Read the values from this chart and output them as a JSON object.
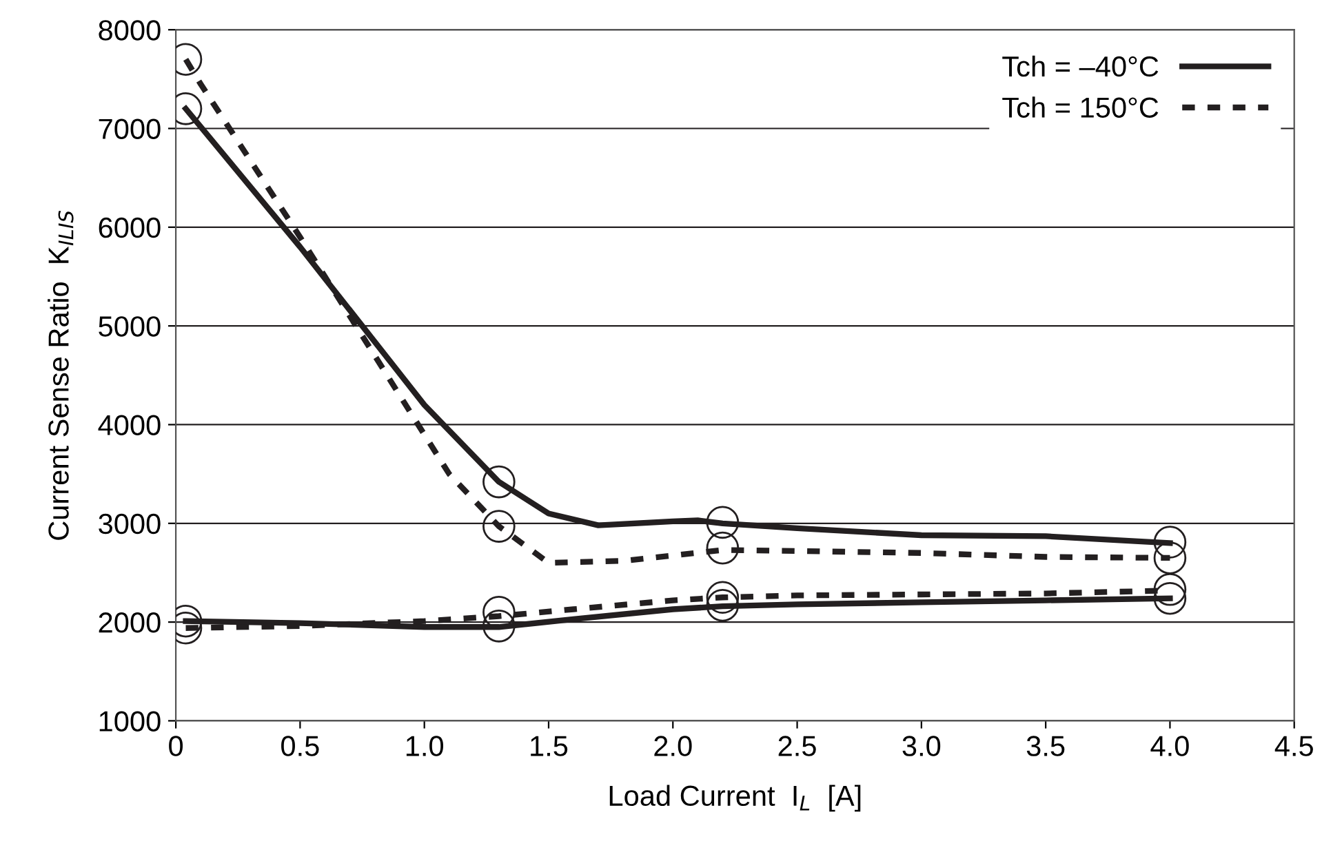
{
  "chart_data": {
    "type": "line",
    "xlabel": "Load Current  I$_{L}$  [A]",
    "ylabel": "Current Sense Ratio  K$_{ILIS}$",
    "xlim": [
      0,
      4.5
    ],
    "ylim": [
      1000,
      8000
    ],
    "xticks": [
      0,
      {
        "value": 0.5,
        "label": "0.5"
      },
      {
        "value": 1,
        "label": "1.0"
      },
      {
        "value": 1.5,
        "label": "1.5"
      },
      {
        "value": 2,
        "label": "2.0"
      },
      {
        "value": 2.5,
        "label": "2.5"
      },
      {
        "value": 3,
        "label": "3.0"
      },
      {
        "value": 3.5,
        "label": "3.5"
      },
      {
        "value": 4,
        "label": "4.0"
      },
      {
        "value": 4.5,
        "label": "4.5"
      }
    ],
    "yticks": [
      1000,
      2000,
      3000,
      4000,
      5000,
      6000,
      7000,
      8000
    ],
    "grid": "y",
    "legend": "top right",
    "series": [
      {
        "name": "Tch = –40°C",
        "color": "#231f20",
        "line_style": "solid",
        "marker": "none",
        "x": [
          0.04,
          0.5,
          1.0,
          1.3,
          1.5,
          1.7,
          2.0,
          2.1,
          2.2,
          2.5,
          3.0,
          3.5,
          4.0
        ],
        "values": [
          7200,
          5800,
          4200,
          3420,
          3100,
          2980,
          3020,
          3030,
          3000,
          2950,
          2880,
          2870,
          2800
        ]
      },
      {
        "name": "Tch = 150°C",
        "color": "#231f20",
        "line_style": "dashed",
        "marker": "none",
        "x": [
          0.04,
          0.1,
          0.5,
          0.9,
          1.1,
          1.3,
          1.5,
          1.8,
          2.2,
          2.5,
          3.0,
          3.5,
          4.0
        ],
        "values": [
          7700,
          7450,
          5900,
          4300,
          3500,
          2970,
          2600,
          2620,
          2730,
          2720,
          2700,
          2660,
          2650
        ]
      },
      {
        "color": "#231f20",
        "line_style": "solid",
        "marker": "none",
        "x": [
          0.04,
          0.5,
          1.0,
          1.3,
          1.6,
          2.0,
          2.2,
          2.5,
          3.0,
          3.5,
          4.0
        ],
        "values": [
          2010,
          1990,
          1950,
          1950,
          2030,
          2130,
          2160,
          2180,
          2200,
          2220,
          2240
        ]
      },
      {
        "color": "#231f20",
        "line_style": "dashed",
        "marker": "none",
        "x": [
          0.04,
          0.5,
          1.0,
          1.3,
          1.6,
          2.0,
          2.2,
          2.5,
          3.0,
          3.5,
          4.0
        ],
        "values": [
          1940,
          1960,
          2010,
          2060,
          2130,
          2220,
          2250,
          2270,
          2280,
          2290,
          2320
        ]
      },
      {
        "type": "scatter",
        "color": "#231f20",
        "marker": "circle",
        "x": [
          0.04,
          0.04,
          0.04,
          0.04,
          1.3,
          1.3,
          1.3,
          1.3,
          2.2,
          2.2,
          2.2,
          2.2,
          4.0,
          4.0,
          4.0,
          4.0
        ],
        "values": [
          7700,
          7200,
          2010,
          1940,
          3420,
          2970,
          2100,
          1960,
          3010,
          2750,
          2250,
          2170,
          2810,
          2650,
          2330,
          2240
        ]
      }
    ]
  }
}
